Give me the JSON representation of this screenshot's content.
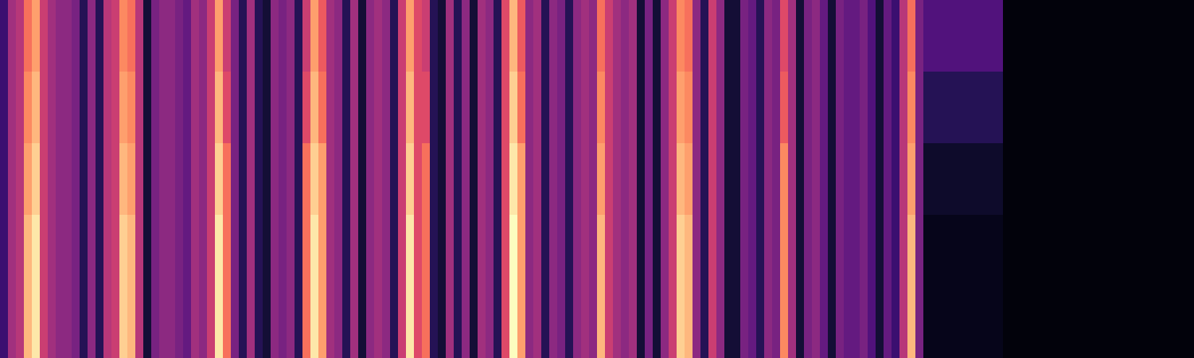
{
  "chart_data": {
    "type": "heatmap",
    "color": "magma",
    "zlim": [
      0,
      100
    ],
    "tick_labels": false,
    "cells": [
      [
        20,
        45,
        50,
        70,
        80,
        55,
        45,
        40,
        40,
        35,
        15,
        40,
        15,
        50,
        55,
        75,
        70,
        50,
        10,
        35,
        40,
        40,
        35,
        30,
        45,
        40,
        55,
        80,
        55,
        35,
        15,
        45,
        15,
        10,
        40,
        35,
        40,
        15,
        55,
        80,
        65,
        45,
        40,
        15,
        45,
        10,
        40,
        45,
        40,
        15,
        55,
        80,
        60,
        55,
        15,
        10,
        45,
        15,
        40,
        10,
        45,
        40,
        15,
        60,
        85,
        65,
        40,
        45,
        15,
        40,
        35,
        15,
        40,
        45,
        40,
        70,
        55,
        45,
        40,
        45,
        10,
        35,
        10,
        40,
        55,
        75,
        70,
        40,
        15,
        55,
        40,
        10,
        10,
        35,
        30,
        15,
        40,
        35,
        60,
        45,
        10,
        35,
        40,
        30,
        10,
        35,
        30,
        30,
        35,
        25,
        10,
        30,
        20,
        50,
        70,
        35,
        25,
        25,
        25,
        25,
        25,
        25,
        25,
        25,
        25,
        25,
        2,
        2,
        2,
        2,
        2,
        2,
        2,
        2,
        2,
        2,
        2,
        2,
        2,
        2,
        2,
        2,
        2,
        2,
        2,
        2,
        2,
        2,
        2,
        2
      ],
      [
        20,
        45,
        50,
        75,
        85,
        55,
        45,
        40,
        40,
        35,
        15,
        40,
        15,
        50,
        55,
        80,
        75,
        50,
        10,
        35,
        40,
        40,
        35,
        30,
        45,
        40,
        55,
        85,
        60,
        35,
        15,
        45,
        15,
        10,
        40,
        35,
        40,
        15,
        60,
        85,
        70,
        45,
        40,
        15,
        45,
        10,
        40,
        45,
        40,
        15,
        55,
        85,
        60,
        60,
        15,
        10,
        45,
        15,
        40,
        10,
        45,
        40,
        15,
        60,
        90,
        70,
        40,
        45,
        15,
        40,
        35,
        15,
        40,
        45,
        40,
        75,
        55,
        45,
        40,
        45,
        10,
        35,
        10,
        40,
        55,
        80,
        75,
        40,
        15,
        55,
        40,
        10,
        10,
        35,
        30,
        15,
        40,
        35,
        65,
        45,
        10,
        35,
        40,
        30,
        10,
        35,
        30,
        30,
        35,
        25,
        10,
        30,
        20,
        50,
        75,
        35,
        15,
        15,
        15,
        15,
        15,
        15,
        15,
        15,
        15,
        15,
        2,
        2,
        2,
        2,
        2,
        2,
        2,
        2,
        2,
        2,
        2,
        2,
        2,
        2,
        2,
        2,
        2,
        2,
        2,
        2,
        2,
        2,
        2,
        2
      ],
      [
        20,
        45,
        50,
        80,
        90,
        55,
        45,
        40,
        40,
        35,
        15,
        40,
        15,
        50,
        55,
        85,
        80,
        50,
        10,
        35,
        40,
        40,
        35,
        30,
        45,
        40,
        55,
        90,
        70,
        35,
        15,
        45,
        15,
        10,
        40,
        35,
        40,
        15,
        70,
        90,
        80,
        45,
        40,
        15,
        45,
        10,
        40,
        45,
        40,
        15,
        55,
        90,
        60,
        70,
        15,
        10,
        45,
        15,
        40,
        10,
        45,
        40,
        15,
        60,
        95,
        80,
        40,
        45,
        15,
        40,
        35,
        15,
        40,
        45,
        40,
        80,
        55,
        45,
        40,
        45,
        10,
        35,
        10,
        40,
        55,
        85,
        80,
        40,
        15,
        55,
        40,
        10,
        10,
        35,
        30,
        15,
        40,
        35,
        75,
        45,
        10,
        35,
        40,
        30,
        10,
        35,
        30,
        30,
        35,
        25,
        10,
        30,
        20,
        50,
        80,
        35,
        8,
        8,
        8,
        8,
        8,
        8,
        8,
        8,
        8,
        8,
        2,
        2,
        2,
        2,
        2,
        2,
        2,
        2,
        2,
        2,
        2,
        2,
        2,
        2,
        2,
        2,
        2,
        2,
        2,
        2,
        2,
        2,
        2,
        2
      ],
      [
        20,
        45,
        50,
        85,
        95,
        55,
        45,
        40,
        40,
        35,
        15,
        40,
        15,
        50,
        55,
        90,
        85,
        50,
        10,
        35,
        40,
        40,
        35,
        30,
        45,
        40,
        55,
        95,
        70,
        35,
        15,
        45,
        15,
        10,
        40,
        35,
        40,
        15,
        70,
        95,
        80,
        45,
        40,
        15,
        45,
        10,
        40,
        45,
        40,
        15,
        55,
        95,
        60,
        70,
        15,
        10,
        45,
        15,
        40,
        10,
        45,
        40,
        15,
        60,
        100,
        80,
        40,
        45,
        15,
        40,
        35,
        15,
        40,
        45,
        40,
        85,
        55,
        45,
        40,
        45,
        10,
        35,
        10,
        40,
        55,
        90,
        85,
        40,
        15,
        55,
        40,
        10,
        10,
        35,
        30,
        15,
        40,
        35,
        75,
        45,
        10,
        35,
        40,
        30,
        10,
        35,
        30,
        30,
        35,
        25,
        10,
        30,
        20,
        50,
        85,
        35,
        5,
        5,
        5,
        5,
        5,
        5,
        5,
        5,
        5,
        5,
        2,
        2,
        2,
        2,
        2,
        2,
        2,
        2,
        2,
        2,
        2,
        2,
        2,
        2,
        2,
        2,
        2,
        2,
        2,
        2,
        2,
        2,
        2,
        2
      ],
      [
        20,
        45,
        50,
        85,
        95,
        55,
        45,
        40,
        40,
        35,
        15,
        40,
        15,
        50,
        55,
        90,
        85,
        50,
        10,
        35,
        40,
        40,
        35,
        30,
        45,
        40,
        55,
        95,
        70,
        35,
        15,
        45,
        15,
        10,
        40,
        35,
        40,
        15,
        70,
        95,
        80,
        45,
        40,
        15,
        45,
        10,
        40,
        45,
        40,
        15,
        55,
        95,
        60,
        70,
        15,
        10,
        45,
        15,
        40,
        10,
        45,
        40,
        15,
        60,
        100,
        80,
        40,
        45,
        15,
        40,
        35,
        15,
        40,
        45,
        40,
        85,
        55,
        45,
        40,
        45,
        10,
        35,
        10,
        40,
        55,
        90,
        85,
        40,
        15,
        55,
        40,
        10,
        10,
        35,
        30,
        15,
        40,
        35,
        75,
        45,
        10,
        35,
        40,
        30,
        10,
        35,
        30,
        30,
        35,
        25,
        10,
        30,
        20,
        50,
        85,
        35,
        5,
        5,
        5,
        5,
        5,
        5,
        5,
        5,
        5,
        5,
        2,
        2,
        2,
        2,
        2,
        2,
        2,
        2,
        2,
        2,
        2,
        2,
        2,
        2,
        2,
        2,
        2,
        2,
        2,
        2,
        2,
        2,
        2,
        2
      ]
    ]
  }
}
